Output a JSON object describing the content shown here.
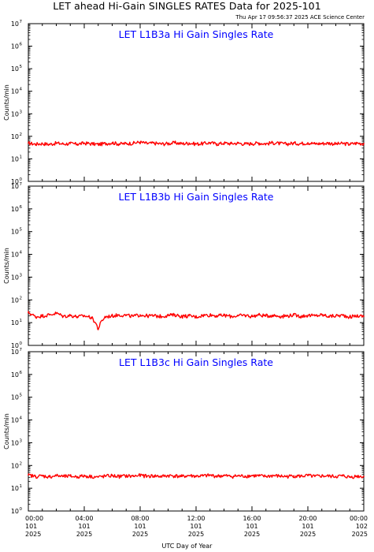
{
  "header": {
    "title": "LET ahead Hi-Gain SINGLES RATES Data for 2025-101",
    "timestamp": "Thu Apr 17 09:56:37 2025 ACE Science Center"
  },
  "x_axis_label": "UTC Day of Year",
  "colors": {
    "series": "#ff0000",
    "panel_title": "#0000ff",
    "axes": "#000000"
  },
  "chart_data": [
    {
      "type": "line",
      "title": "LET L1B3a Hi Gain Singles Rate",
      "ylabel": "Counts/min",
      "yscale": "log",
      "ylim": [
        1,
        10000000
      ],
      "xlim_hours": [
        0,
        24
      ],
      "x_tick_labels": [
        [
          "00:00",
          "101",
          "2025"
        ],
        [
          "04:00",
          "101",
          "2025"
        ],
        [
          "08:00",
          "101",
          "2025"
        ],
        [
          "12:00",
          "101",
          "2025"
        ],
        [
          "16:00",
          "101",
          "2025"
        ],
        [
          "20:00",
          "101",
          "2025"
        ],
        [
          "00:00",
          "102",
          "2025"
        ]
      ],
      "x_hours": [
        0,
        0.5,
        1,
        1.5,
        2,
        2.5,
        3,
        3.5,
        4,
        4.5,
        5,
        5.5,
        6,
        6.5,
        7,
        7.5,
        8,
        8.5,
        9,
        9.5,
        10,
        10.5,
        11,
        11.5,
        12,
        12.5,
        13,
        13.5,
        14,
        14.5,
        15,
        15.5,
        16,
        16.5,
        17,
        17.5,
        18,
        18.5,
        19,
        19.5,
        20,
        20.5,
        21,
        21.5,
        22,
        22.5,
        23,
        23.5,
        24
      ],
      "values": [
        50,
        45,
        48,
        44,
        50,
        46,
        48,
        45,
        50,
        47,
        44,
        48,
        52,
        46,
        48,
        50,
        55,
        48,
        50,
        46,
        48,
        52,
        47,
        50,
        46,
        48,
        52,
        46,
        50,
        48,
        50,
        46,
        48,
        50,
        47,
        52,
        48,
        46,
        50,
        48,
        52,
        47,
        48,
        50,
        46,
        48,
        45,
        50,
        48
      ]
    },
    {
      "type": "line",
      "title": "LET L1B3b Hi Gain Singles Rate",
      "ylabel": "Counts/min",
      "yscale": "log",
      "ylim": [
        1,
        10000000
      ],
      "xlim_hours": [
        0,
        24
      ],
      "x_tick_labels": [
        [
          "00:00",
          "101",
          "2025"
        ],
        [
          "04:00",
          "101",
          "2025"
        ],
        [
          "08:00",
          "101",
          "2025"
        ],
        [
          "12:00",
          "101",
          "2025"
        ],
        [
          "16:00",
          "101",
          "2025"
        ],
        [
          "20:00",
          "101",
          "2025"
        ],
        [
          "00:00",
          "102",
          "2025"
        ]
      ],
      "x_hours": [
        0,
        0.5,
        1,
        1.5,
        2,
        2.5,
        3,
        3.5,
        4,
        4.5,
        5,
        5.5,
        6,
        6.5,
        7,
        7.5,
        8,
        8.5,
        9,
        9.5,
        10,
        10.5,
        11,
        11.5,
        12,
        12.5,
        13,
        13.5,
        14,
        14.5,
        15,
        15.5,
        16,
        16.5,
        17,
        17.5,
        18,
        18.5,
        19,
        19.5,
        20,
        20.5,
        21,
        21.5,
        22,
        22.5,
        23,
        23.5,
        24
      ],
      "values": [
        28,
        18,
        20,
        22,
        26,
        19,
        21,
        18,
        20,
        17,
        5,
        18,
        20,
        22,
        21,
        19,
        22,
        20,
        20,
        19,
        21,
        22,
        19,
        20,
        18,
        21,
        22,
        20,
        21,
        19,
        20,
        21,
        19,
        22,
        20,
        21,
        19,
        20,
        22,
        19,
        21,
        20,
        22,
        19,
        20,
        21,
        18,
        20,
        19
      ]
    },
    {
      "type": "line",
      "title": "LET L1B3c Hi Gain Singles Rate",
      "ylabel": "Counts/min",
      "yscale": "log",
      "ylim": [
        1,
        10000000
      ],
      "xlim_hours": [
        0,
        24
      ],
      "x_tick_labels": [
        [
          "00:00",
          "101",
          "2025"
        ],
        [
          "04:00",
          "101",
          "2025"
        ],
        [
          "08:00",
          "101",
          "2025"
        ],
        [
          "12:00",
          "101",
          "2025"
        ],
        [
          "16:00",
          "101",
          "2025"
        ],
        [
          "20:00",
          "101",
          "2025"
        ],
        [
          "00:00",
          "102",
          "2025"
        ]
      ],
      "x_hours": [
        0,
        0.5,
        1,
        1.5,
        2,
        2.5,
        3,
        3.5,
        4,
        4.5,
        5,
        5.5,
        6,
        6.5,
        7,
        7.5,
        8,
        8.5,
        9,
        9.5,
        10,
        10.5,
        11,
        11.5,
        12,
        12.5,
        13,
        13.5,
        14,
        14.5,
        15,
        15.5,
        16,
        16.5,
        17,
        17.5,
        18,
        18.5,
        19,
        19.5,
        20,
        20.5,
        21,
        21.5,
        22,
        22.5,
        23,
        23.5,
        24
      ],
      "values": [
        38,
        33,
        35,
        32,
        36,
        33,
        34,
        32,
        35,
        33,
        31,
        34,
        36,
        33,
        35,
        34,
        37,
        34,
        35,
        33,
        36,
        35,
        33,
        36,
        34,
        35,
        37,
        34,
        36,
        33,
        35,
        34,
        36,
        35,
        33,
        36,
        34,
        33,
        35,
        34,
        36,
        33,
        35,
        34,
        33,
        35,
        31,
        34,
        33
      ]
    }
  ]
}
